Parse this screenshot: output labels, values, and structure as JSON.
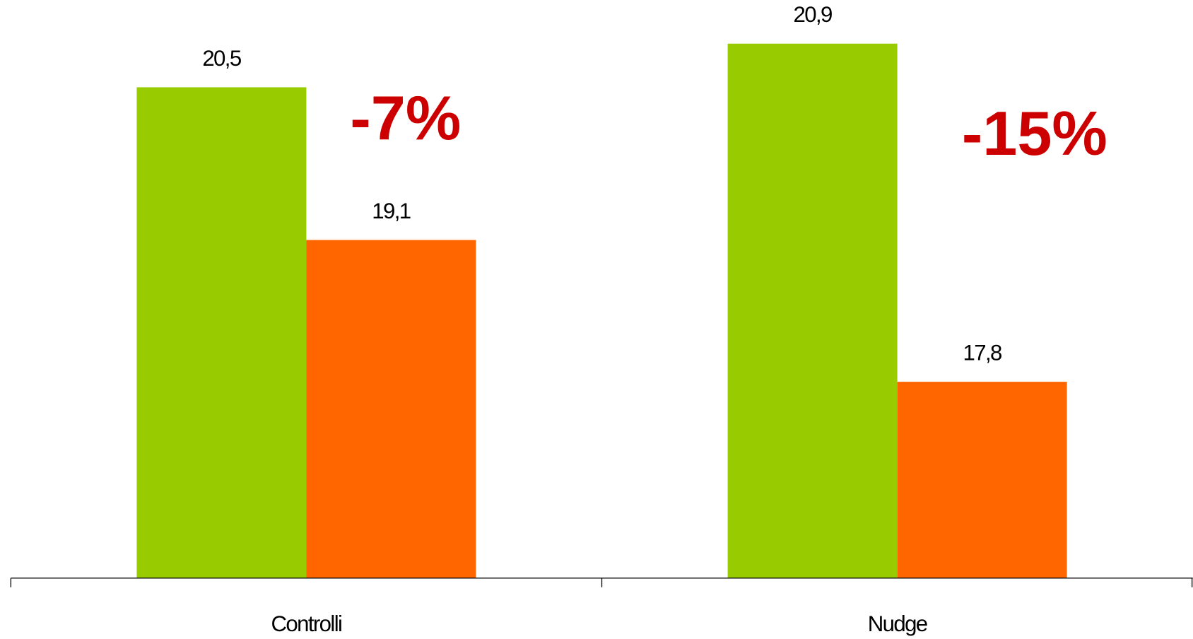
{
  "chart_data": {
    "type": "bar",
    "categories": [
      "Controlli",
      "Nudge"
    ],
    "series": [
      {
        "color": "#99cc00",
        "values": [
          20.5,
          20.9
        ],
        "value_labels": [
          "20,5",
          "20,9"
        ]
      },
      {
        "color": "#ff6600",
        "values": [
          19.1,
          17.8
        ],
        "value_labels": [
          "19,1",
          "17,8"
        ]
      }
    ],
    "ylim": [
      16,
      21.3
    ],
    "annotations": [
      "-7%",
      "-15%"
    ]
  }
}
